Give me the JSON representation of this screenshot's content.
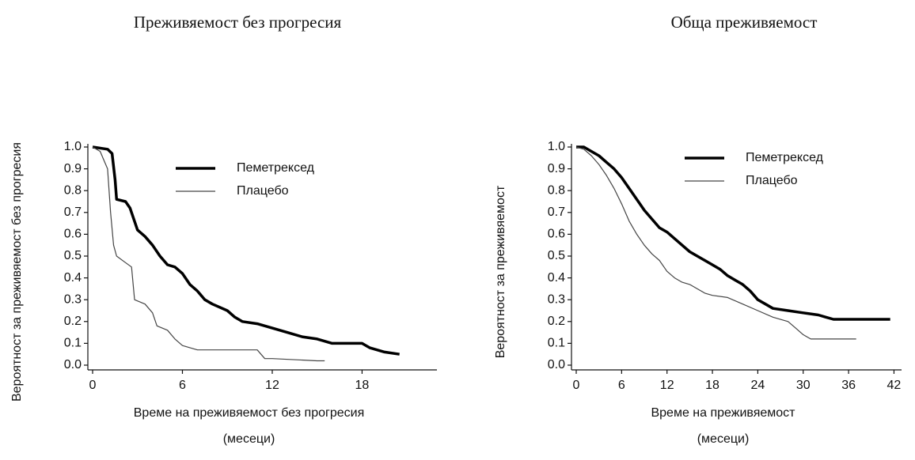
{
  "chart_data": [
    {
      "type": "line",
      "title": "Преживяемост без прогресия",
      "xlabel": [
        "Време на преживяемост без прогресия",
        "(месеци)"
      ],
      "ylabel": "Вероятност за преживяемост без прогресия",
      "xlim": [
        0,
        23
      ],
      "xticks": [
        0,
        6,
        12,
        18
      ],
      "ylim": [
        0,
        1
      ],
      "yticks": [
        {
          "value": 0,
          "label": "0.0"
        },
        0.1,
        0.2,
        0.3,
        0.4,
        0.5,
        0.6,
        0.7,
        0.8,
        0.9,
        {
          "value": 1,
          "label": "1.0"
        }
      ],
      "legend": "upper right",
      "series": [
        {
          "name": "Пеметрексед",
          "color": "#000000",
          "x": [
            0,
            1,
            1.3,
            1.5,
            1.6,
            2.2,
            2.5,
            3,
            3.5,
            4,
            4.5,
            5,
            5.5,
            6,
            6.5,
            7,
            7.5,
            8,
            9,
            9.5,
            10,
            11,
            12,
            13,
            14,
            15,
            16,
            17,
            18,
            18.5,
            19.5,
            20.5
          ],
          "values": [
            1,
            0.99,
            0.97,
            0.85,
            0.76,
            0.75,
            0.72,
            0.62,
            0.59,
            0.55,
            0.5,
            0.46,
            0.45,
            0.42,
            0.37,
            0.34,
            0.3,
            0.28,
            0.25,
            0.22,
            0.2,
            0.19,
            0.17,
            0.15,
            0.13,
            0.12,
            0.1,
            0.1,
            0.1,
            0.08,
            0.06,
            0.05
          ]
        },
        {
          "name": "Плацебо",
          "color": "#444444",
          "x": [
            0,
            0.5,
            1,
            1.2,
            1.4,
            1.6,
            2.2,
            2.6,
            2.8,
            3.5,
            4,
            4.3,
            5,
            5.5,
            6,
            6.5,
            7,
            8,
            11,
            11.5,
            12,
            15,
            15.5
          ],
          "values": [
            1,
            0.98,
            0.9,
            0.7,
            0.55,
            0.5,
            0.47,
            0.45,
            0.3,
            0.28,
            0.24,
            0.18,
            0.16,
            0.12,
            0.09,
            0.08,
            0.07,
            0.07,
            0.07,
            0.03,
            0.03,
            0.02,
            0.02
          ]
        }
      ]
    },
    {
      "type": "line",
      "title": "Обща преживяемост",
      "xlabel": [
        "Време на преживяемост",
        "(месеци)"
      ],
      "ylabel": "Вероятност за преживяемост",
      "xlim": [
        0,
        43
      ],
      "xticks": [
        0,
        6,
        12,
        18,
        24,
        30,
        36,
        42
      ],
      "ylim": [
        0,
        1
      ],
      "yticks": [
        {
          "value": 0,
          "label": "0.0"
        },
        0.1,
        0.2,
        0.3,
        0.4,
        0.5,
        0.6,
        0.7,
        0.8,
        0.9,
        {
          "value": 1,
          "label": "1.0"
        }
      ],
      "legend": "upper right",
      "series": [
        {
          "name": "Пеметрексед",
          "color": "#000000",
          "x": [
            0,
            1,
            2,
            3,
            4,
            5,
            6,
            7,
            8,
            9,
            10,
            11,
            12,
            13,
            14,
            15,
            16,
            17,
            18,
            19,
            20,
            21,
            22,
            23,
            24,
            25,
            26,
            28,
            30,
            32,
            33,
            34,
            36,
            41.5
          ],
          "values": [
            1,
            1,
            0.98,
            0.96,
            0.93,
            0.9,
            0.86,
            0.81,
            0.76,
            0.71,
            0.67,
            0.63,
            0.61,
            0.58,
            0.55,
            0.52,
            0.5,
            0.48,
            0.46,
            0.44,
            0.41,
            0.39,
            0.37,
            0.34,
            0.3,
            0.28,
            0.26,
            0.25,
            0.24,
            0.23,
            0.22,
            0.21,
            0.21,
            0.21
          ]
        },
        {
          "name": "Плацебо",
          "color": "#444444",
          "x": [
            0,
            1,
            2,
            3,
            4,
            5,
            6,
            7,
            8,
            9,
            10,
            11,
            12,
            13,
            14,
            15,
            16,
            17,
            18,
            20,
            22,
            24,
            26,
            28,
            29,
            30,
            31,
            33,
            37
          ],
          "values": [
            1,
            0.99,
            0.96,
            0.92,
            0.87,
            0.81,
            0.74,
            0.66,
            0.6,
            0.55,
            0.51,
            0.48,
            0.43,
            0.4,
            0.38,
            0.37,
            0.35,
            0.33,
            0.32,
            0.31,
            0.28,
            0.25,
            0.22,
            0.2,
            0.17,
            0.14,
            0.12,
            0.12,
            0.12
          ]
        }
      ]
    }
  ]
}
